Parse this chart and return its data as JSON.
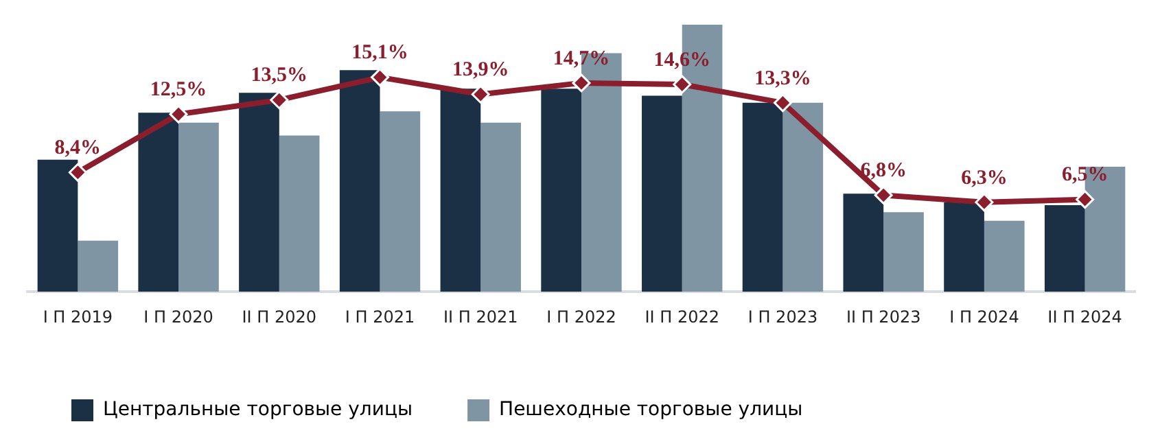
{
  "chart_data": {
    "type": "bar",
    "categories": [
      "I П 2019",
      "I П 2020",
      "II П 2020",
      "I П 2021",
      "II П 2021",
      "I П 2022",
      "II П 2022",
      "I П 2023",
      "II П 2023",
      "I П 2024",
      "II П 2024"
    ],
    "series": [
      {
        "name": "Центральные торговые улицы",
        "color": "#1b2f45",
        "values": [
          9.3,
          12.6,
          14.0,
          15.6,
          14.3,
          14.3,
          13.8,
          13.3,
          6.9,
          6.3,
          6.1
        ]
      },
      {
        "name": "Пешеходные торговые улицы",
        "color": "#7f95a3",
        "values": [
          3.6,
          11.9,
          11.0,
          12.7,
          11.9,
          16.8,
          18.8,
          13.3,
          5.6,
          5.0,
          8.8
        ]
      },
      {
        "type": "line",
        "color": "#8b1e2d",
        "marker": "diamond",
        "values": [
          8.4,
          12.5,
          13.5,
          15.1,
          13.9,
          14.7,
          14.6,
          13.3,
          6.8,
          6.3,
          6.5
        ],
        "value_labels": [
          "8,4%",
          "12,5%",
          "13,5%",
          "15,1%",
          "13,9%",
          "14,7%",
          "14,6%",
          "13,3%",
          "6,8%",
          "6,3%",
          "6,5%"
        ]
      }
    ],
    "ylim": [
      0,
      18.8
    ],
    "tick_labels": "x",
    "grid": false,
    "legend": "bottom left"
  }
}
